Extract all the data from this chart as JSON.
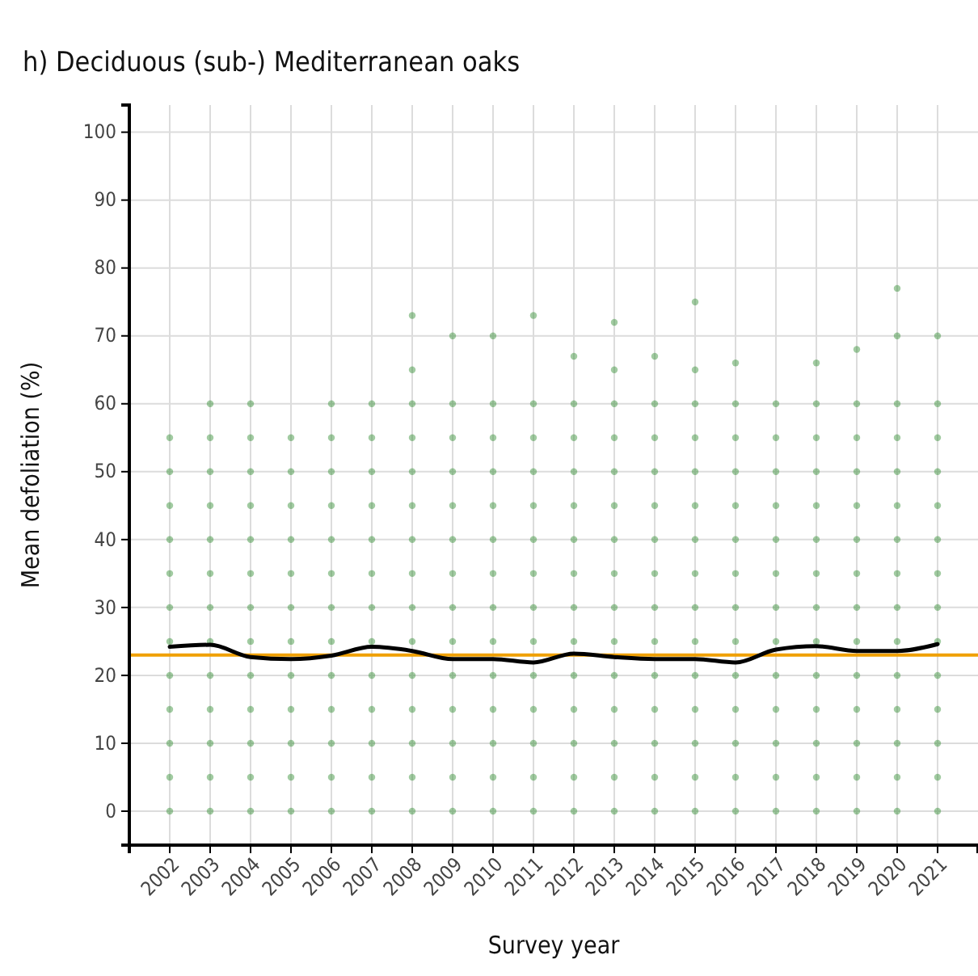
{
  "chart_data": {
    "type": "scatter",
    "title": "h) Deciduous (sub-) Mediterranean oaks",
    "xlabel": "Survey year",
    "ylabel": "Mean defoliation (%)",
    "categories": [
      "2002",
      "2003",
      "2004",
      "2005",
      "2006",
      "2007",
      "2008",
      "2009",
      "2010",
      "2011",
      "2012",
      "2013",
      "2014",
      "2015",
      "2016",
      "2017",
      "2018",
      "2019",
      "2020",
      "2021"
    ],
    "ylim": [
      -5,
      104
    ],
    "yticks": [
      0,
      10,
      20,
      30,
      40,
      50,
      60,
      70,
      80,
      90,
      100
    ],
    "grid": true,
    "marker": "circle",
    "series": [
      {
        "color": "#2e8b2e",
        "values": [
          0,
          0,
          0,
          0,
          0,
          0,
          0,
          0,
          0,
          0,
          0,
          0,
          0,
          0,
          0,
          0,
          0,
          0,
          0,
          0
        ]
      },
      {
        "color": "#2e8b2e",
        "values": [
          5,
          5,
          5,
          5,
          5,
          5,
          5,
          5,
          5,
          5,
          5,
          5,
          5,
          5,
          5,
          5,
          5,
          5,
          5,
          5
        ]
      },
      {
        "color": "#2e8b2e",
        "values": [
          10,
          10,
          10,
          10,
          10,
          10,
          10,
          10,
          10,
          10,
          10,
          10,
          10,
          10,
          10,
          10,
          10,
          10,
          10,
          10
        ]
      },
      {
        "color": "#2e8b2e",
        "values": [
          15,
          15,
          15,
          15,
          15,
          15,
          15,
          15,
          15,
          15,
          15,
          15,
          15,
          15,
          15,
          15,
          15,
          15,
          15,
          15
        ]
      },
      {
        "color": "#2e8b2e",
        "values": [
          20,
          20,
          20,
          20,
          20,
          20,
          20,
          20,
          20,
          20,
          20,
          20,
          20,
          20,
          20,
          20,
          20,
          20,
          20,
          20
        ]
      },
      {
        "color": "#2e8b2e",
        "values": [
          25,
          25,
          25,
          25,
          25,
          25,
          25,
          25,
          25,
          25,
          25,
          25,
          25,
          25,
          25,
          25,
          25,
          25,
          25,
          25
        ]
      },
      {
        "color": "#2e8b2e",
        "values": [
          30,
          30,
          30,
          30,
          30,
          30,
          30,
          30,
          30,
          30,
          30,
          30,
          30,
          30,
          30,
          30,
          30,
          30,
          30,
          30
        ]
      },
      {
        "color": "#2e8b2e",
        "values": [
          35,
          35,
          35,
          35,
          35,
          35,
          35,
          35,
          35,
          35,
          35,
          35,
          35,
          35,
          35,
          35,
          35,
          35,
          35,
          35
        ]
      },
      {
        "color": "#2e8b2e",
        "values": [
          40,
          40,
          40,
          40,
          40,
          40,
          40,
          40,
          40,
          40,
          40,
          40,
          40,
          40,
          40,
          40,
          40,
          40,
          40,
          40
        ]
      },
      {
        "color": "#2e8b2e",
        "values": [
          45,
          45,
          45,
          45,
          45,
          45,
          45,
          45,
          45,
          45,
          45,
          45,
          45,
          45,
          45,
          45,
          45,
          45,
          45,
          45
        ]
      },
      {
        "color": "#2e8b2e",
        "values": [
          50,
          50,
          50,
          50,
          50,
          50,
          50,
          50,
          50,
          50,
          50,
          50,
          50,
          50,
          50,
          50,
          50,
          50,
          50,
          50
        ]
      },
      {
        "color": "#2e8b2e",
        "values": [
          55,
          55,
          55,
          55,
          55,
          55,
          55,
          55,
          55,
          55,
          55,
          55,
          55,
          55,
          55,
          55,
          55,
          55,
          55,
          55
        ]
      },
      {
        "color": "#2e8b2e",
        "values": [
          null,
          60,
          60,
          null,
          60,
          60,
          60,
          60,
          60,
          60,
          60,
          60,
          60,
          60,
          60,
          60,
          60,
          60,
          60,
          60
        ]
      },
      {
        "color": "#2e8b2e",
        "values": [
          null,
          null,
          null,
          null,
          null,
          null,
          65,
          null,
          null,
          null,
          null,
          65,
          null,
          65,
          null,
          null,
          null,
          null,
          null,
          null
        ]
      },
      {
        "color": "#2e8b2e",
        "values": [
          null,
          null,
          null,
          null,
          null,
          null,
          73,
          70,
          70,
          73,
          67,
          72,
          67,
          75,
          66,
          null,
          66,
          68,
          70,
          70
        ]
      },
      {
        "color": "#2e8b2e",
        "values": [
          null,
          null,
          null,
          null,
          null,
          null,
          null,
          null,
          null,
          null,
          null,
          null,
          null,
          null,
          null,
          null,
          null,
          null,
          77,
          null
        ]
      },
      {
        "type": "line",
        "color": "#000000",
        "marker": "none",
        "values": [
          24.2,
          24.5,
          22.7,
          22.4,
          22.9,
          24.2,
          23.6,
          22.4,
          22.4,
          21.9,
          23.2,
          22.7,
          22.4,
          22.4,
          21.9,
          23.8,
          24.3,
          23.6,
          23.6,
          24.6
        ]
      }
    ],
    "ref_lines": [
      {
        "axis": "y",
        "value": 23,
        "color": "#f0a000"
      }
    ]
  }
}
